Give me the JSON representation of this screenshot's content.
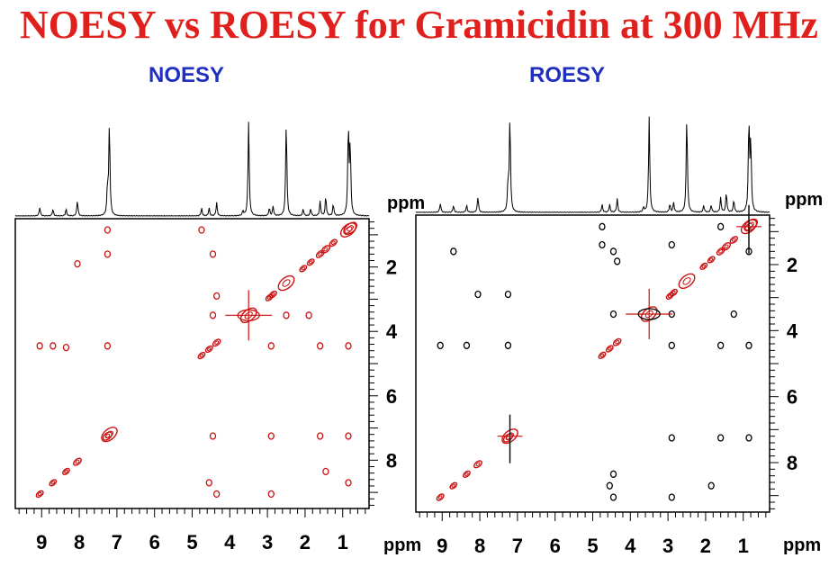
{
  "title": "NOESY vs ROESY for Gramicidin at 300 MHz",
  "colors": {
    "title": "#e0201c",
    "subtitle": "#1f2fc0",
    "positive": "#cc1010",
    "negative": "#000000",
    "spectrum": "#000000"
  },
  "chart_data": [
    {
      "type": "heatmap",
      "title": "NOESY",
      "x_unit": "ppm",
      "y_unit": "ppm",
      "x_ticks": [
        "9",
        "8",
        "7",
        "6",
        "5",
        "4",
        "3",
        "2",
        "1"
      ],
      "y_ticks": [
        "2",
        "4",
        "6",
        "8"
      ],
      "xlim": [
        9.7,
        0.3
      ],
      "ylim": [
        0.5,
        9.5
      ],
      "spectrum_peaks": [
        {
          "ppm": 9.05,
          "height": 0.09
        },
        {
          "ppm": 8.7,
          "height": 0.07
        },
        {
          "ppm": 8.35,
          "height": 0.07
        },
        {
          "ppm": 8.05,
          "height": 0.16
        },
        {
          "ppm": 7.25,
          "height": 0.28
        },
        {
          "ppm": 7.2,
          "height": 0.95
        },
        {
          "ppm": 4.75,
          "height": 0.08
        },
        {
          "ppm": 4.55,
          "height": 0.08
        },
        {
          "ppm": 4.35,
          "height": 0.14
        },
        {
          "ppm": 3.65,
          "height": 0.05
        },
        {
          "ppm": 3.5,
          "height": 0.98
        },
        {
          "ppm": 2.95,
          "height": 0.08
        },
        {
          "ppm": 2.85,
          "height": 0.1
        },
        {
          "ppm": 2.5,
          "height": 0.98
        },
        {
          "ppm": 2.05,
          "height": 0.07
        },
        {
          "ppm": 1.85,
          "height": 0.07
        },
        {
          "ppm": 1.6,
          "height": 0.15
        },
        {
          "ppm": 1.45,
          "height": 0.2
        },
        {
          "ppm": 1.25,
          "height": 0.12
        },
        {
          "ppm": 0.85,
          "height": 0.92
        },
        {
          "ppm": 0.8,
          "height": 0.7
        }
      ],
      "cross_peaks": [
        {
          "x": 9.05,
          "y": 4.45,
          "sign": "positive"
        },
        {
          "x": 8.7,
          "y": 4.45,
          "sign": "positive"
        },
        {
          "x": 8.35,
          "y": 4.5,
          "sign": "positive"
        },
        {
          "x": 8.05,
          "y": 1.9,
          "sign": "positive"
        },
        {
          "x": 7.25,
          "y": 0.85,
          "sign": "positive"
        },
        {
          "x": 7.25,
          "y": 1.6,
          "sign": "positive"
        },
        {
          "x": 7.25,
          "y": 4.45,
          "sign": "positive"
        },
        {
          "x": 4.75,
          "y": 0.85,
          "sign": "positive"
        },
        {
          "x": 4.45,
          "y": 1.6,
          "sign": "positive"
        },
        {
          "x": 4.35,
          "y": 2.9,
          "sign": "positive"
        },
        {
          "x": 4.45,
          "y": 7.25,
          "sign": "positive"
        },
        {
          "x": 4.55,
          "y": 8.7,
          "sign": "positive"
        },
        {
          "x": 4.35,
          "y": 9.05,
          "sign": "positive"
        },
        {
          "x": 2.9,
          "y": 4.45,
          "sign": "positive"
        },
        {
          "x": 2.9,
          "y": 7.25,
          "sign": "positive"
        },
        {
          "x": 2.9,
          "y": 9.05,
          "sign": "positive"
        },
        {
          "x": 1.6,
          "y": 4.45,
          "sign": "positive"
        },
        {
          "x": 1.6,
          "y": 7.25,
          "sign": "positive"
        },
        {
          "x": 1.45,
          "y": 8.35,
          "sign": "positive"
        },
        {
          "x": 0.85,
          "y": 4.45,
          "sign": "positive"
        },
        {
          "x": 0.85,
          "y": 7.25,
          "sign": "positive"
        },
        {
          "x": 0.85,
          "y": 8.7,
          "sign": "positive"
        },
        {
          "x": 1.9,
          "y": 3.5,
          "sign": "positive"
        },
        {
          "x": 2.5,
          "y": 3.5,
          "sign": "positive"
        },
        {
          "x": 4.45,
          "y": 3.5,
          "sign": "positive"
        }
      ]
    },
    {
      "type": "heatmap",
      "title": "ROESY",
      "x_unit": "ppm",
      "y_unit": "ppm",
      "x_ticks": [
        "9",
        "8",
        "7",
        "6",
        "5",
        "4",
        "3",
        "2",
        "1"
      ],
      "y_ticks": [
        "2",
        "4",
        "6",
        "8"
      ],
      "xlim": [
        9.7,
        0.3
      ],
      "ylim": [
        0.5,
        9.5
      ],
      "spectrum_peaks": [
        {
          "ppm": 9.05,
          "height": 0.09
        },
        {
          "ppm": 8.7,
          "height": 0.07
        },
        {
          "ppm": 8.35,
          "height": 0.07
        },
        {
          "ppm": 8.05,
          "height": 0.16
        },
        {
          "ppm": 7.25,
          "height": 0.28
        },
        {
          "ppm": 7.2,
          "height": 0.95
        },
        {
          "ppm": 4.75,
          "height": 0.08
        },
        {
          "ppm": 4.55,
          "height": 0.08
        },
        {
          "ppm": 4.35,
          "height": 0.14
        },
        {
          "ppm": 3.65,
          "height": 0.05
        },
        {
          "ppm": 3.5,
          "height": 0.98
        },
        {
          "ppm": 2.95,
          "height": 0.08
        },
        {
          "ppm": 2.85,
          "height": 0.1
        },
        {
          "ppm": 2.5,
          "height": 0.98
        },
        {
          "ppm": 2.05,
          "height": 0.07
        },
        {
          "ppm": 1.85,
          "height": 0.07
        },
        {
          "ppm": 1.6,
          "height": 0.15
        },
        {
          "ppm": 1.45,
          "height": 0.2
        },
        {
          "ppm": 1.25,
          "height": 0.12
        },
        {
          "ppm": 0.85,
          "height": 0.92
        },
        {
          "ppm": 0.8,
          "height": 0.7
        }
      ],
      "cross_peaks": [
        {
          "x": 9.05,
          "y": 4.45,
          "sign": "negative"
        },
        {
          "x": 8.7,
          "y": 1.6,
          "sign": "negative"
        },
        {
          "x": 8.35,
          "y": 4.45,
          "sign": "negative"
        },
        {
          "x": 8.05,
          "y": 2.9,
          "sign": "negative"
        },
        {
          "x": 7.25,
          "y": 4.45,
          "sign": "negative"
        },
        {
          "x": 7.25,
          "y": 2.9,
          "sign": "negative"
        },
        {
          "x": 4.75,
          "y": 1.4,
          "sign": "negative"
        },
        {
          "x": 4.45,
          "y": 1.6,
          "sign": "negative"
        },
        {
          "x": 4.35,
          "y": 1.9,
          "sign": "negative"
        },
        {
          "x": 4.45,
          "y": 3.5,
          "sign": "negative"
        },
        {
          "x": 4.45,
          "y": 8.35,
          "sign": "negative"
        },
        {
          "x": 4.55,
          "y": 8.7,
          "sign": "negative"
        },
        {
          "x": 4.45,
          "y": 9.05,
          "sign": "negative"
        },
        {
          "x": 2.9,
          "y": 1.4,
          "sign": "negative"
        },
        {
          "x": 2.9,
          "y": 3.5,
          "sign": "negative"
        },
        {
          "x": 2.9,
          "y": 4.45,
          "sign": "negative"
        },
        {
          "x": 2.9,
          "y": 7.25,
          "sign": "negative"
        },
        {
          "x": 2.9,
          "y": 9.05,
          "sign": "negative"
        },
        {
          "x": 1.6,
          "y": 4.45,
          "sign": "negative"
        },
        {
          "x": 1.6,
          "y": 7.25,
          "sign": "negative"
        },
        {
          "x": 1.85,
          "y": 8.7,
          "sign": "negative"
        },
        {
          "x": 0.85,
          "y": 4.45,
          "sign": "negative"
        },
        {
          "x": 0.85,
          "y": 7.25,
          "sign": "negative"
        },
        {
          "x": 1.25,
          "y": 3.5,
          "sign": "negative"
        },
        {
          "x": 1.6,
          "y": 0.85,
          "sign": "negative"
        },
        {
          "x": 0.85,
          "y": 1.6,
          "sign": "negative"
        },
        {
          "x": 4.75,
          "y": 0.85,
          "sign": "negative"
        }
      ]
    }
  ]
}
